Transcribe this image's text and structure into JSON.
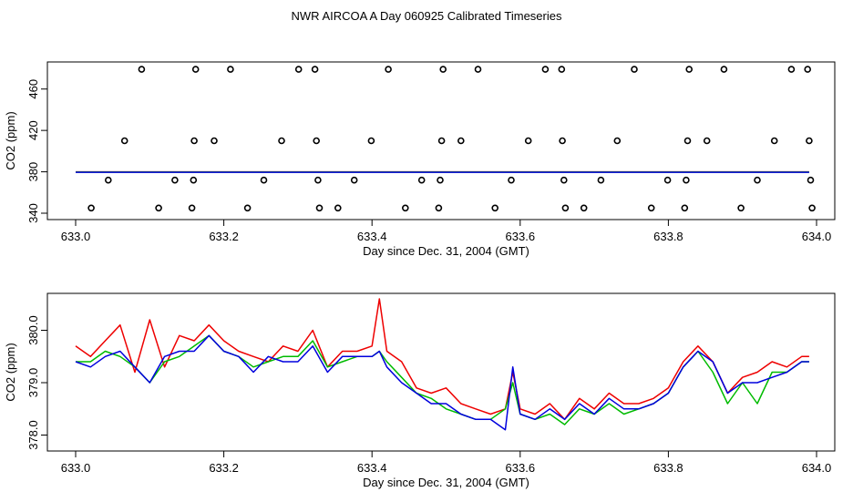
{
  "figure_title": "NWR AIRCOA A  Day 060925  Calibrated Timeseries",
  "colors": {
    "axis": "#000000",
    "red": "#ee0000",
    "green": "#00bb00",
    "blue": "#0000dd"
  },
  "chart_data": [
    {
      "type": "scatter",
      "title": "NWR AIRCOA A  Day 060925  Calibrated Timeseries",
      "xlabel": "Day since Dec. 31, 2004 (GMT)",
      "ylabel": "CO2 (ppm)",
      "xlim": [
        633.0,
        634.0
      ],
      "ylim": [
        340,
        480
      ],
      "x_ticks": [
        633.0,
        633.2,
        633.4,
        633.6,
        633.8,
        634.0
      ],
      "x_tick_labels": [
        "633.0",
        "633.2",
        "633.4",
        "633.6",
        "633.8",
        "634.0"
      ],
      "y_ticks": [
        340,
        380,
        420,
        460
      ],
      "y_tick_labels": [
        "340",
        "380",
        "420",
        "460"
      ],
      "calibration_points": [
        {
          "x": 633.021,
          "y": 345
        },
        {
          "x": 633.044,
          "y": 372
        },
        {
          "x": 633.066,
          "y": 410
        },
        {
          "x": 633.089,
          "y": 479
        },
        {
          "x": 633.112,
          "y": 345
        },
        {
          "x": 633.134,
          "y": 372
        },
        {
          "x": 633.157,
          "y": 345
        },
        {
          "x": 633.159,
          "y": 372
        },
        {
          "x": 633.16,
          "y": 410
        },
        {
          "x": 633.162,
          "y": 479
        },
        {
          "x": 633.187,
          "y": 410
        },
        {
          "x": 633.209,
          "y": 479
        },
        {
          "x": 633.232,
          "y": 345
        },
        {
          "x": 633.254,
          "y": 372
        },
        {
          "x": 633.278,
          "y": 410
        },
        {
          "x": 633.301,
          "y": 479
        },
        {
          "x": 633.323,
          "y": 479
        },
        {
          "x": 633.325,
          "y": 410
        },
        {
          "x": 633.327,
          "y": 372
        },
        {
          "x": 633.329,
          "y": 345
        },
        {
          "x": 633.354,
          "y": 345
        },
        {
          "x": 633.376,
          "y": 372
        },
        {
          "x": 633.399,
          "y": 410
        },
        {
          "x": 633.422,
          "y": 479
        },
        {
          "x": 633.445,
          "y": 345
        },
        {
          "x": 633.467,
          "y": 372
        },
        {
          "x": 633.49,
          "y": 345
        },
        {
          "x": 633.492,
          "y": 372
        },
        {
          "x": 633.494,
          "y": 410
        },
        {
          "x": 633.496,
          "y": 479
        },
        {
          "x": 633.52,
          "y": 410
        },
        {
          "x": 633.543,
          "y": 479
        },
        {
          "x": 633.566,
          "y": 345
        },
        {
          "x": 633.588,
          "y": 372
        },
        {
          "x": 633.611,
          "y": 410
        },
        {
          "x": 633.634,
          "y": 479
        },
        {
          "x": 633.656,
          "y": 479
        },
        {
          "x": 633.657,
          "y": 410
        },
        {
          "x": 633.659,
          "y": 372
        },
        {
          "x": 633.661,
          "y": 345
        },
        {
          "x": 633.686,
          "y": 345
        },
        {
          "x": 633.709,
          "y": 372
        },
        {
          "x": 633.731,
          "y": 410
        },
        {
          "x": 633.754,
          "y": 479
        },
        {
          "x": 633.777,
          "y": 345
        },
        {
          "x": 633.799,
          "y": 372
        },
        {
          "x": 633.822,
          "y": 345
        },
        {
          "x": 633.824,
          "y": 372
        },
        {
          "x": 633.826,
          "y": 410
        },
        {
          "x": 633.828,
          "y": 479
        },
        {
          "x": 633.852,
          "y": 410
        },
        {
          "x": 633.875,
          "y": 479
        },
        {
          "x": 633.898,
          "y": 345
        },
        {
          "x": 633.92,
          "y": 372
        },
        {
          "x": 633.943,
          "y": 410
        },
        {
          "x": 633.966,
          "y": 479
        },
        {
          "x": 633.988,
          "y": 479
        },
        {
          "x": 633.99,
          "y": 410
        },
        {
          "x": 633.992,
          "y": 372
        },
        {
          "x": 633.994,
          "y": 345
        }
      ],
      "series": [
        {
          "name": "red",
          "color": "#ee0000",
          "x": [
            633.0,
            633.99
          ],
          "y": [
            380,
            380
          ]
        },
        {
          "name": "green",
          "color": "#00bb00",
          "x": [
            633.0,
            633.99
          ],
          "y": [
            379.7,
            379.7
          ]
        },
        {
          "name": "blue",
          "color": "#0000dd",
          "x": [
            633.0,
            633.99
          ],
          "y": [
            379.5,
            379.5
          ]
        }
      ]
    },
    {
      "type": "line",
      "xlabel": "Day since Dec. 31, 2004 (GMT)",
      "ylabel": "CO2 (ppm)",
      "xlim": [
        633.0,
        634.0
      ],
      "ylim": [
        377.8,
        380.6
      ],
      "x_ticks": [
        633.0,
        633.2,
        633.4,
        633.6,
        633.8,
        634.0
      ],
      "x_tick_labels": [
        "633.0",
        "633.2",
        "633.4",
        "633.6",
        "633.8",
        "634.0"
      ],
      "y_ticks": [
        378.0,
        379.0,
        380.0
      ],
      "y_tick_labels": [
        "378.0",
        "379.0",
        "380.0"
      ],
      "series": [
        {
          "name": "red",
          "color": "#ee0000",
          "x": [
            633.0,
            633.02,
            633.04,
            633.06,
            633.08,
            633.1,
            633.12,
            633.14,
            633.16,
            633.18,
            633.2,
            633.22,
            633.24,
            633.26,
            633.28,
            633.3,
            633.32,
            633.34,
            633.36,
            633.38,
            633.4,
            633.41,
            633.42,
            633.44,
            633.46,
            633.48,
            633.5,
            633.52,
            633.54,
            633.56,
            633.58,
            633.59,
            633.6,
            633.62,
            633.64,
            633.66,
            633.68,
            633.7,
            633.72,
            633.74,
            633.76,
            633.78,
            633.8,
            633.82,
            633.84,
            633.86,
            633.88,
            633.9,
            633.92,
            633.94,
            633.96,
            633.98,
            633.99
          ],
          "y": [
            379.7,
            379.5,
            379.8,
            380.1,
            379.2,
            380.2,
            379.3,
            379.9,
            379.8,
            380.1,
            379.8,
            379.6,
            379.5,
            379.4,
            379.7,
            379.6,
            380.0,
            379.3,
            379.6,
            379.6,
            379.7,
            380.6,
            379.6,
            379.4,
            378.9,
            378.8,
            378.9,
            378.6,
            378.5,
            378.4,
            378.5,
            379.2,
            378.5,
            378.4,
            378.6,
            378.3,
            378.7,
            378.5,
            378.8,
            378.6,
            378.6,
            378.7,
            378.9,
            379.4,
            379.7,
            379.4,
            378.8,
            379.1,
            379.2,
            379.4,
            379.3,
            379.5,
            379.5
          ]
        },
        {
          "name": "green",
          "color": "#00bb00",
          "x": [
            633.0,
            633.02,
            633.04,
            633.06,
            633.08,
            633.1,
            633.12,
            633.14,
            633.16,
            633.18,
            633.2,
            633.22,
            633.24,
            633.26,
            633.28,
            633.3,
            633.32,
            633.34,
            633.36,
            633.38,
            633.4,
            633.41,
            633.42,
            633.44,
            633.46,
            633.48,
            633.5,
            633.52,
            633.54,
            633.56,
            633.58,
            633.59,
            633.6,
            633.62,
            633.64,
            633.66,
            633.68,
            633.7,
            633.72,
            633.74,
            633.76,
            633.78,
            633.8,
            633.82,
            633.84,
            633.86,
            633.88,
            633.9,
            633.92,
            633.94,
            633.96,
            633.98,
            633.99
          ],
          "y": [
            379.4,
            379.4,
            379.6,
            379.5,
            379.3,
            379.0,
            379.4,
            379.5,
            379.7,
            379.9,
            379.6,
            379.5,
            379.3,
            379.4,
            379.5,
            379.5,
            379.8,
            379.3,
            379.4,
            379.5,
            379.5,
            379.6,
            379.4,
            379.1,
            378.8,
            378.7,
            378.5,
            378.4,
            378.3,
            378.3,
            378.5,
            379.0,
            378.4,
            378.3,
            378.4,
            378.2,
            378.5,
            378.4,
            378.6,
            378.4,
            378.5,
            378.6,
            378.8,
            379.3,
            379.6,
            379.2,
            378.6,
            379.0,
            378.6,
            379.2,
            379.2,
            379.4,
            379.4
          ]
        },
        {
          "name": "blue",
          "color": "#0000dd",
          "x": [
            633.0,
            633.02,
            633.04,
            633.06,
            633.08,
            633.1,
            633.12,
            633.14,
            633.16,
            633.18,
            633.2,
            633.22,
            633.24,
            633.26,
            633.28,
            633.3,
            633.32,
            633.34,
            633.36,
            633.38,
            633.4,
            633.41,
            633.42,
            633.44,
            633.46,
            633.48,
            633.5,
            633.52,
            633.54,
            633.56,
            633.58,
            633.59,
            633.6,
            633.62,
            633.64,
            633.66,
            633.68,
            633.7,
            633.72,
            633.74,
            633.76,
            633.78,
            633.8,
            633.82,
            633.84,
            633.86,
            633.88,
            633.9,
            633.92,
            633.94,
            633.96,
            633.98,
            633.99
          ],
          "y": [
            379.4,
            379.3,
            379.5,
            379.6,
            379.3,
            379.0,
            379.5,
            379.6,
            379.6,
            379.9,
            379.6,
            379.5,
            379.2,
            379.5,
            379.4,
            379.4,
            379.7,
            379.2,
            379.5,
            379.5,
            379.5,
            379.6,
            379.3,
            379.0,
            378.8,
            378.6,
            378.6,
            378.4,
            378.3,
            378.3,
            378.1,
            379.3,
            378.4,
            378.3,
            378.5,
            378.3,
            378.6,
            378.4,
            378.7,
            378.5,
            378.5,
            378.6,
            378.8,
            379.3,
            379.6,
            379.4,
            378.8,
            379.0,
            379.0,
            379.1,
            379.2,
            379.4,
            379.4
          ]
        }
      ]
    }
  ]
}
